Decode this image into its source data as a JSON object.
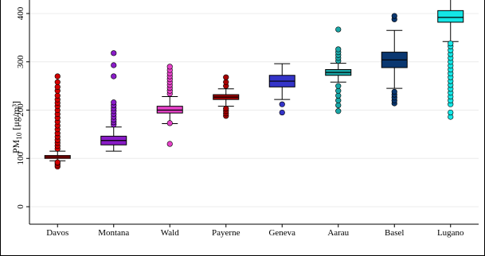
{
  "chart_data": {
    "type": "boxplot",
    "title": "",
    "xlabel": "",
    "ylabel_main": "PM",
    "ylabel_sub": "10",
    "ylabel_unit": " [μg/m³]",
    "ylim": [
      -25,
      415
    ],
    "yticks": [
      0,
      100,
      200,
      300,
      400
    ],
    "ytick_labels": [
      "0",
      "100",
      "200",
      "300",
      "400"
    ],
    "grid": "horizontal",
    "categories": [
      "Davos",
      "Montana",
      "Wald",
      "Payerne",
      "Geneva",
      "Aarau",
      "Basel",
      "Lugano"
    ],
    "colors": [
      "#d40000",
      "#8a1cc8",
      "#e642c8",
      "#a80000",
      "#3434c8",
      "#1aa7a7",
      "#0a3770",
      "#14e6e6"
    ],
    "boxes": [
      {
        "name": "Davos",
        "min": 95,
        "q1": 100,
        "median": 103,
        "q3": 106,
        "max": 115,
        "outliers": [
          83,
          86,
          90,
          92,
          120,
          126,
          132,
          138,
          145,
          152,
          160,
          168,
          176,
          184,
          192,
          200,
          208,
          215,
          222,
          230,
          240,
          248,
          258,
          270
        ]
      },
      {
        "name": "Montana",
        "min": 115,
        "q1": 128,
        "median": 137,
        "q3": 146,
        "max": 165,
        "outliers": [
          170,
          175,
          180,
          186,
          192,
          198,
          204,
          210,
          216,
          270,
          293,
          318
        ]
      },
      {
        "name": "Wald",
        "min": 172,
        "q1": 194,
        "median": 200,
        "q3": 208,
        "max": 228,
        "outliers": [
          130,
          173,
          234,
          240,
          246,
          252,
          258,
          264,
          270,
          276,
          283,
          290
        ]
      },
      {
        "name": "Payerne",
        "min": 208,
        "q1": 222,
        "median": 227,
        "q3": 232,
        "max": 244,
        "outliers": [
          188,
          193,
          198,
          203,
          250,
          258,
          268
        ]
      },
      {
        "name": "Geneva",
        "min": 222,
        "q1": 248,
        "median": 260,
        "q3": 272,
        "max": 296,
        "outliers": [
          195,
          212
        ]
      },
      {
        "name": "Aarau",
        "min": 258,
        "q1": 272,
        "median": 278,
        "q3": 284,
        "max": 297,
        "outliers": [
          198,
          210,
          220,
          230,
          240,
          250,
          302,
          308,
          314,
          320,
          326,
          367
        ]
      },
      {
        "name": "Basel",
        "min": 245,
        "q1": 288,
        "median": 304,
        "q3": 320,
        "max": 365,
        "outliers": [
          214,
          220,
          226,
          232,
          238,
          388,
          395
        ]
      },
      {
        "name": "Lugano",
        "min": 342,
        "q1": 382,
        "median": 392,
        "q3": 406,
        "max": 430,
        "outliers": [
          186,
          195,
          212,
          220,
          228,
          236,
          244,
          252,
          260,
          268,
          276,
          284,
          292,
          300,
          308,
          316,
          324,
          332,
          338
        ]
      }
    ]
  }
}
